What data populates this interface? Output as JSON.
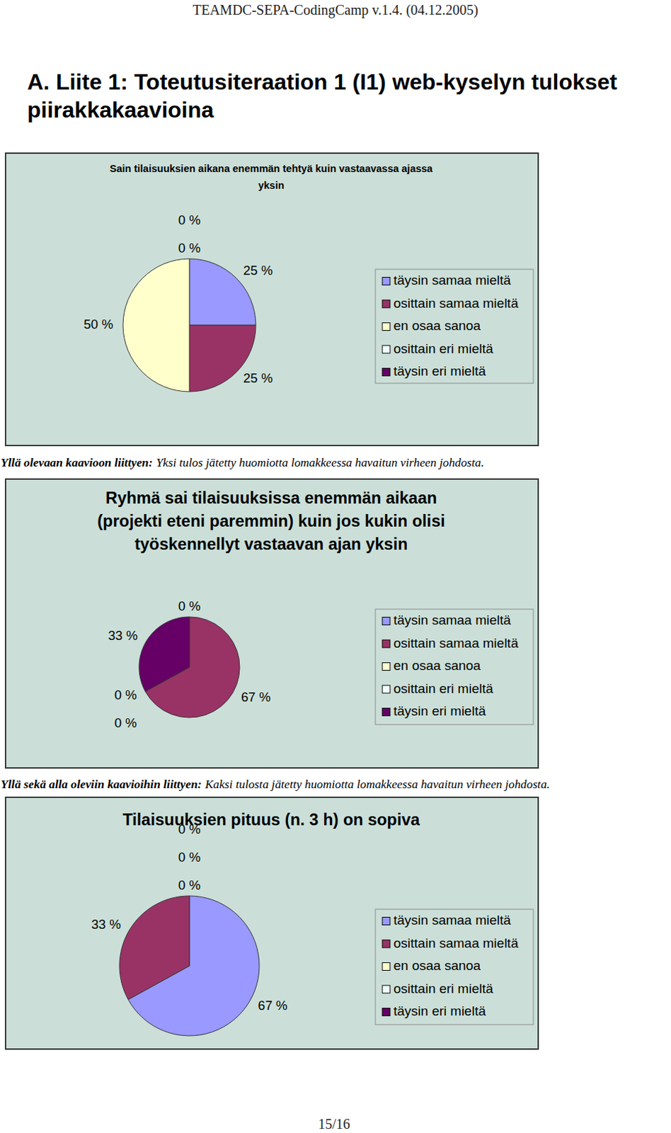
{
  "header": "TEAMDC-SEPA-CodingCamp v.1.4. (04.12.2005)",
  "title_lines": [
    "A. Liite 1: Toteutusiteraation 1 (I1) web-kyselyn tulokset",
    "piirakkakaavioina"
  ],
  "chart_data": [
    {
      "type": "pie",
      "title": "Sain tilaisuuksien aikana enemmän tehtyä kuin vastaavassa ajassa\nyksin",
      "categories": [
        "täysin samaa mieltä",
        "osittain samaa mieltä",
        "en osaa sanoa",
        "osittain eri mieltä",
        "täysin eri mieltä"
      ],
      "values": [
        25,
        25,
        50,
        0,
        0
      ],
      "value_labels": [
        "25 %",
        "25 %",
        "50 %",
        "0 %",
        "0 %"
      ],
      "colors": [
        "#9999FF",
        "#993366",
        "#FFFFCC",
        "#F2FFFF",
        "#660066"
      ],
      "data_labels": true,
      "legend": "right"
    },
    {
      "type": "pie",
      "title": "Ryhmä sai tilaisuuksissa enemmän aikaan\n(projekti eteni paremmin) kuin jos kukin olisi\ntyöskennellyt vastaavan ajan yksin",
      "categories": [
        "täysin samaa mieltä",
        "osittain samaa mieltä",
        "en osaa sanoa",
        "osittain eri mieltä",
        "täysin eri mieltä"
      ],
      "values": [
        0,
        67,
        0,
        0,
        33
      ],
      "value_labels": [
        "0 %",
        "67 %",
        "0 %",
        "0 %",
        "33 %"
      ],
      "colors": [
        "#9999FF",
        "#993366",
        "#FFFFCC",
        "#F2FFFF",
        "#660066"
      ],
      "data_labels": true,
      "legend": "right"
    },
    {
      "type": "pie",
      "title": "Tilaisuuksien pituus (n. 3 h) on sopiva",
      "categories": [
        "täysin samaa mieltä",
        "osittain samaa mieltä",
        "en osaa sanoa",
        "osittain eri mieltä",
        "täysin eri mieltä"
      ],
      "values": [
        67,
        33,
        0,
        0,
        0
      ],
      "value_labels": [
        "67 %",
        "33 %",
        "0 %",
        "0 %",
        "0 %"
      ],
      "colors": [
        "#9999FF",
        "#993366",
        "#FFFFCC",
        "#F2FFFF",
        "#660066"
      ],
      "data_labels": true,
      "legend": "right"
    }
  ],
  "notes": [
    {
      "label": "Yllä olevaan kaavioon liittyen:",
      "text": "Yksi tulos jätetty huomiotta lomakkeessa havaitun virheen johdosta."
    },
    {
      "label": "Yllä sekä alla oleviin kaavioihin liittyen:",
      "text": "Kaksi tulosta jätetty huomiotta lomakkeessa havaitun virheen johdosta."
    }
  ],
  "page_number": "15/16"
}
